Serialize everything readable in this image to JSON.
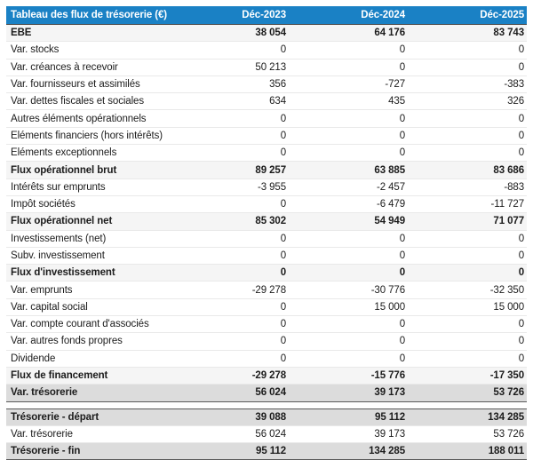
{
  "table": {
    "header": {
      "title": "Tableau des flux de trésorerie (€)",
      "columns": [
        "Déc-2023",
        "Déc-2024",
        "Déc-2025"
      ]
    },
    "rows": [
      {
        "label": "EBE",
        "values": [
          "38 054",
          "64 176",
          "83 743"
        ],
        "style": "strong"
      },
      {
        "label": "Var. stocks",
        "values": [
          "0",
          "0",
          "0"
        ],
        "style": "normal"
      },
      {
        "label": "Var. créances à recevoir",
        "values": [
          "50 213",
          "0",
          "0"
        ],
        "style": "normal"
      },
      {
        "label": "Var. fournisseurs et assimilés",
        "values": [
          "356",
          "-727",
          "-383"
        ],
        "style": "normal"
      },
      {
        "label": "Var. dettes fiscales et sociales",
        "values": [
          "634",
          "435",
          "326"
        ],
        "style": "normal"
      },
      {
        "label": "Autres éléments opérationnels",
        "values": [
          "0",
          "0",
          "0"
        ],
        "style": "normal"
      },
      {
        "label": "Eléments financiers (hors intérêts)",
        "values": [
          "0",
          "0",
          "0"
        ],
        "style": "normal"
      },
      {
        "label": "Eléments exceptionnels",
        "values": [
          "0",
          "0",
          "0"
        ],
        "style": "normal"
      },
      {
        "label": "Flux opérationnel brut",
        "values": [
          "89 257",
          "63 885",
          "83 686"
        ],
        "style": "subtotal"
      },
      {
        "label": "Intérêts sur emprunts",
        "values": [
          "-3 955",
          "-2 457",
          "-883"
        ],
        "style": "normal"
      },
      {
        "label": "Impôt sociétés",
        "values": [
          "0",
          "-6 479",
          "-11 727"
        ],
        "style": "normal"
      },
      {
        "label": "Flux opérationnel net",
        "values": [
          "85 302",
          "54 949",
          "71 077"
        ],
        "style": "subtotal"
      },
      {
        "label": "Investissements (net)",
        "values": [
          "0",
          "0",
          "0"
        ],
        "style": "normal"
      },
      {
        "label": "Subv. investissement",
        "values": [
          "0",
          "0",
          "0"
        ],
        "style": "normal"
      },
      {
        "label": "Flux d'investissement",
        "values": [
          "0",
          "0",
          "0"
        ],
        "style": "subtotal"
      },
      {
        "label": "Var. emprunts",
        "values": [
          "-29 278",
          "-30 776",
          "-32 350"
        ],
        "style": "normal"
      },
      {
        "label": "Var. capital social",
        "values": [
          "0",
          "15 000",
          "15 000"
        ],
        "style": "normal"
      },
      {
        "label": "Var. compte courant d'associés",
        "values": [
          "0",
          "0",
          "0"
        ],
        "style": "normal"
      },
      {
        "label": "Var. autres fonds propres",
        "values": [
          "0",
          "0",
          "0"
        ],
        "style": "normal"
      },
      {
        "label": "Dividende",
        "values": [
          "0",
          "0",
          "0"
        ],
        "style": "normal"
      },
      {
        "label": "Flux de financement",
        "values": [
          "-29 278",
          "-15 776",
          "-17 350"
        ],
        "style": "subtotal"
      },
      {
        "label": "Var. trésorerie",
        "values": [
          "56 024",
          "39 173",
          "53 726"
        ],
        "style": "total"
      },
      {
        "label": "",
        "values": [],
        "style": "spacer"
      },
      {
        "label": "Trésorerie - départ",
        "values": [
          "39 088",
          "95 112",
          "134 285"
        ],
        "style": "total_start"
      },
      {
        "label": "Var. trésorerie",
        "values": [
          "56 024",
          "39 173",
          "53 726"
        ],
        "style": "normal"
      },
      {
        "label": "Trésorerie - fin",
        "values": [
          "95 112",
          "134 285",
          "188 011"
        ],
        "style": "total"
      }
    ],
    "colors": {
      "header_bg": "#1a81c5",
      "header_text": "#ffffff",
      "strong_bg": "#f5f5f5",
      "total_bg": "#dcdcdc",
      "dark_border": "#5a5a5a"
    }
  }
}
